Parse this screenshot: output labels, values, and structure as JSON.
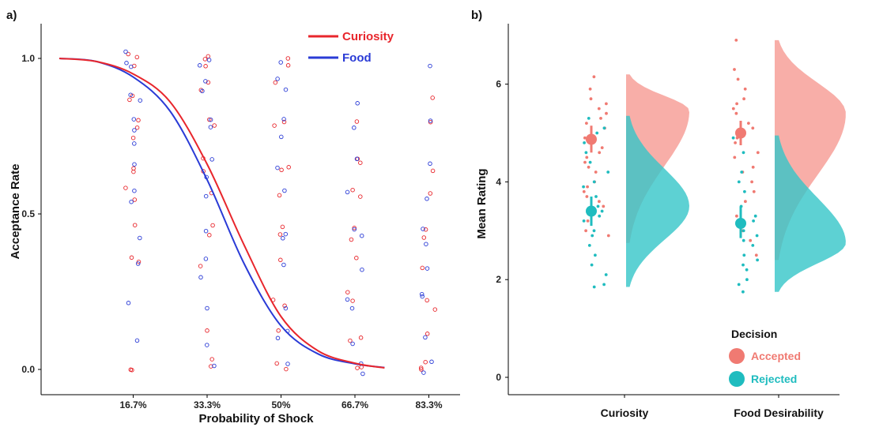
{
  "panel_a": {
    "label": "a)",
    "chart_data": {
      "type": "scatter",
      "xlabel": "Probability of Shock",
      "ylabel": "Acceptance Rate",
      "categories": [
        "16.7%",
        "33.3%",
        "50%",
        "66.7%",
        "83.3%"
      ],
      "yticks": [
        "0.0",
        "0.5",
        "1.0"
      ],
      "ylim": [
        -0.02,
        1.08
      ],
      "legend_position": "top-right",
      "series": [
        {
          "name": "Curiosity",
          "color": "#e8262c",
          "curve": [
            [
              0,
              1.0
            ],
            [
              0.5,
              0.99
            ],
            [
              1,
              0.95
            ],
            [
              1.5,
              0.86
            ],
            [
              2,
              0.66
            ],
            [
              2.5,
              0.4
            ],
            [
              3,
              0.17
            ],
            [
              3.5,
              0.06
            ],
            [
              4,
              0.02
            ],
            [
              4.4,
              0.005
            ]
          ],
          "points": [
            [
              1.0,
              [
                1.01,
                1.0,
                0.98,
                0.88,
                0.87,
                0.8,
                0.78,
                0.74,
                0.65,
                0.64,
                0.58,
                0.55,
                0.46,
                0.36,
                0.35,
                0.0,
                0.0
              ]
            ],
            [
              2.0,
              [
                1.01,
                1.0,
                0.98,
                0.92,
                0.9,
                0.8,
                0.78,
                0.68,
                0.64,
                0.57,
                0.46,
                0.43,
                0.33,
                0.12,
                0.03,
                0.01
              ]
            ],
            [
              3.0,
              [
                1.0,
                0.98,
                0.92,
                0.8,
                0.78,
                0.65,
                0.64,
                0.56,
                0.46,
                0.43,
                0.35,
                0.22,
                0.2,
                0.12,
                0.02,
                0.0
              ]
            ],
            [
              4.0,
              [
                0.8,
                0.68,
                0.66,
                0.58,
                0.56,
                0.45,
                0.42,
                0.36,
                0.25,
                0.22,
                0.1,
                0.09,
                0.01,
                0.0
              ]
            ],
            [
              5.0,
              [
                0.87,
                0.8,
                0.64,
                0.57,
                0.45,
                0.42,
                0.33,
                0.22,
                0.19,
                0.11,
                0.02,
                0.0,
                0.0
              ]
            ]
          ]
        },
        {
          "name": "Food",
          "color": "#2a3bd6",
          "curve": [
            [
              0,
              1.0
            ],
            [
              0.5,
              0.99
            ],
            [
              1,
              0.94
            ],
            [
              1.5,
              0.83
            ],
            [
              2,
              0.61
            ],
            [
              2.5,
              0.34
            ],
            [
              3,
              0.14
            ],
            [
              3.5,
              0.05
            ],
            [
              4,
              0.018
            ],
            [
              4.4,
              0.006
            ]
          ],
          "points": [
            [
              1.0,
              [
                1.02,
                0.99,
                0.97,
                0.88,
                0.86,
                0.8,
                0.77,
                0.73,
                0.66,
                0.57,
                0.54,
                0.42,
                0.34,
                0.21,
                0.09
              ]
            ],
            [
              2.0,
              [
                1.0,
                0.98,
                0.93,
                0.9,
                0.8,
                0.78,
                0.68,
                0.62,
                0.56,
                0.44,
                0.36,
                0.3,
                0.2,
                0.08,
                0.01
              ]
            ],
            [
              3.0,
              [
                0.99,
                0.93,
                0.9,
                0.8,
                0.75,
                0.65,
                0.57,
                0.44,
                0.42,
                0.34,
                0.2,
                0.12,
                0.1,
                0.02
              ]
            ],
            [
              4.0,
              [
                0.86,
                0.78,
                0.68,
                0.57,
                0.45,
                0.43,
                0.32,
                0.22,
                0.2,
                0.08,
                0.02,
                -0.01
              ]
            ],
            [
              5.0,
              [
                0.98,
                0.8,
                0.66,
                0.55,
                0.45,
                0.4,
                0.32,
                0.24,
                0.23,
                0.1,
                0.02,
                -0.01
              ]
            ]
          ]
        }
      ]
    }
  },
  "panel_b": {
    "label": "b)",
    "chart_data": {
      "type": "raincloud",
      "ylabel": "Mean Rating",
      "categories": [
        "Curiosity",
        "Food Desirability"
      ],
      "yticks": [
        "0",
        "2",
        "4",
        "6"
      ],
      "ylim": [
        -0.4,
        7.3
      ],
      "legend_title": "Decision",
      "series": [
        {
          "name": "Accepted",
          "color": "#f07a72",
          "cloud_color": "#f69a92",
          "means": [
            4.87,
            5.0
          ],
          "ci": [
            [
              4.6,
              5.15
            ],
            [
              4.75,
              5.25
            ]
          ],
          "ranges": [
            [
              2.75,
              6.2
            ],
            [
              2.4,
              6.9
            ]
          ],
          "modes": [
            5.45,
            5.4
          ],
          "points": [
            [
              5.9,
              6.15,
              5.7,
              5.6,
              5.5,
              5.4,
              5.3,
              5.2,
              5.1,
              4.9,
              4.8,
              4.7,
              4.6,
              4.5,
              4.4,
              4.3,
              4.2,
              4.0,
              3.9,
              3.8,
              3.7,
              3.6,
              3.5,
              3.4,
              3.2,
              3.0,
              2.9
            ],
            [
              6.9,
              6.3,
              6.1,
              5.9,
              5.7,
              5.6,
              5.5,
              5.4,
              5.2,
              5.1,
              5.0,
              4.9,
              4.8,
              4.6,
              4.5,
              4.3,
              4.2,
              4.0,
              3.8,
              3.6,
              3.3,
              3.0,
              2.8,
              2.5
            ]
          ]
        },
        {
          "name": "Rejected",
          "color": "#1fbcbf",
          "cloud_color": "#35c5c8",
          "means": [
            3.4,
            3.15
          ],
          "ci": [
            [
              3.1,
              3.7
            ],
            [
              2.85,
              3.5
            ]
          ],
          "ranges": [
            [
              1.85,
              5.35
            ],
            [
              1.75,
              4.95
            ]
          ],
          "modes": [
            3.5,
            2.75
          ],
          "points": [
            [
              5.3,
              5.1,
              5.0,
              4.8,
              4.6,
              4.4,
              4.2,
              4.0,
              3.9,
              3.7,
              3.5,
              3.4,
              3.3,
              3.2,
              3.0,
              2.9,
              2.7,
              2.5,
              2.3,
              2.1,
              1.9,
              1.85
            ],
            [
              4.9,
              4.6,
              4.2,
              4.0,
              3.8,
              3.5,
              3.3,
              3.2,
              3.0,
              2.9,
              2.8,
              2.7,
              2.5,
              2.4,
              2.3,
              2.2,
              2.0,
              1.9,
              1.75
            ]
          ]
        }
      ]
    }
  }
}
